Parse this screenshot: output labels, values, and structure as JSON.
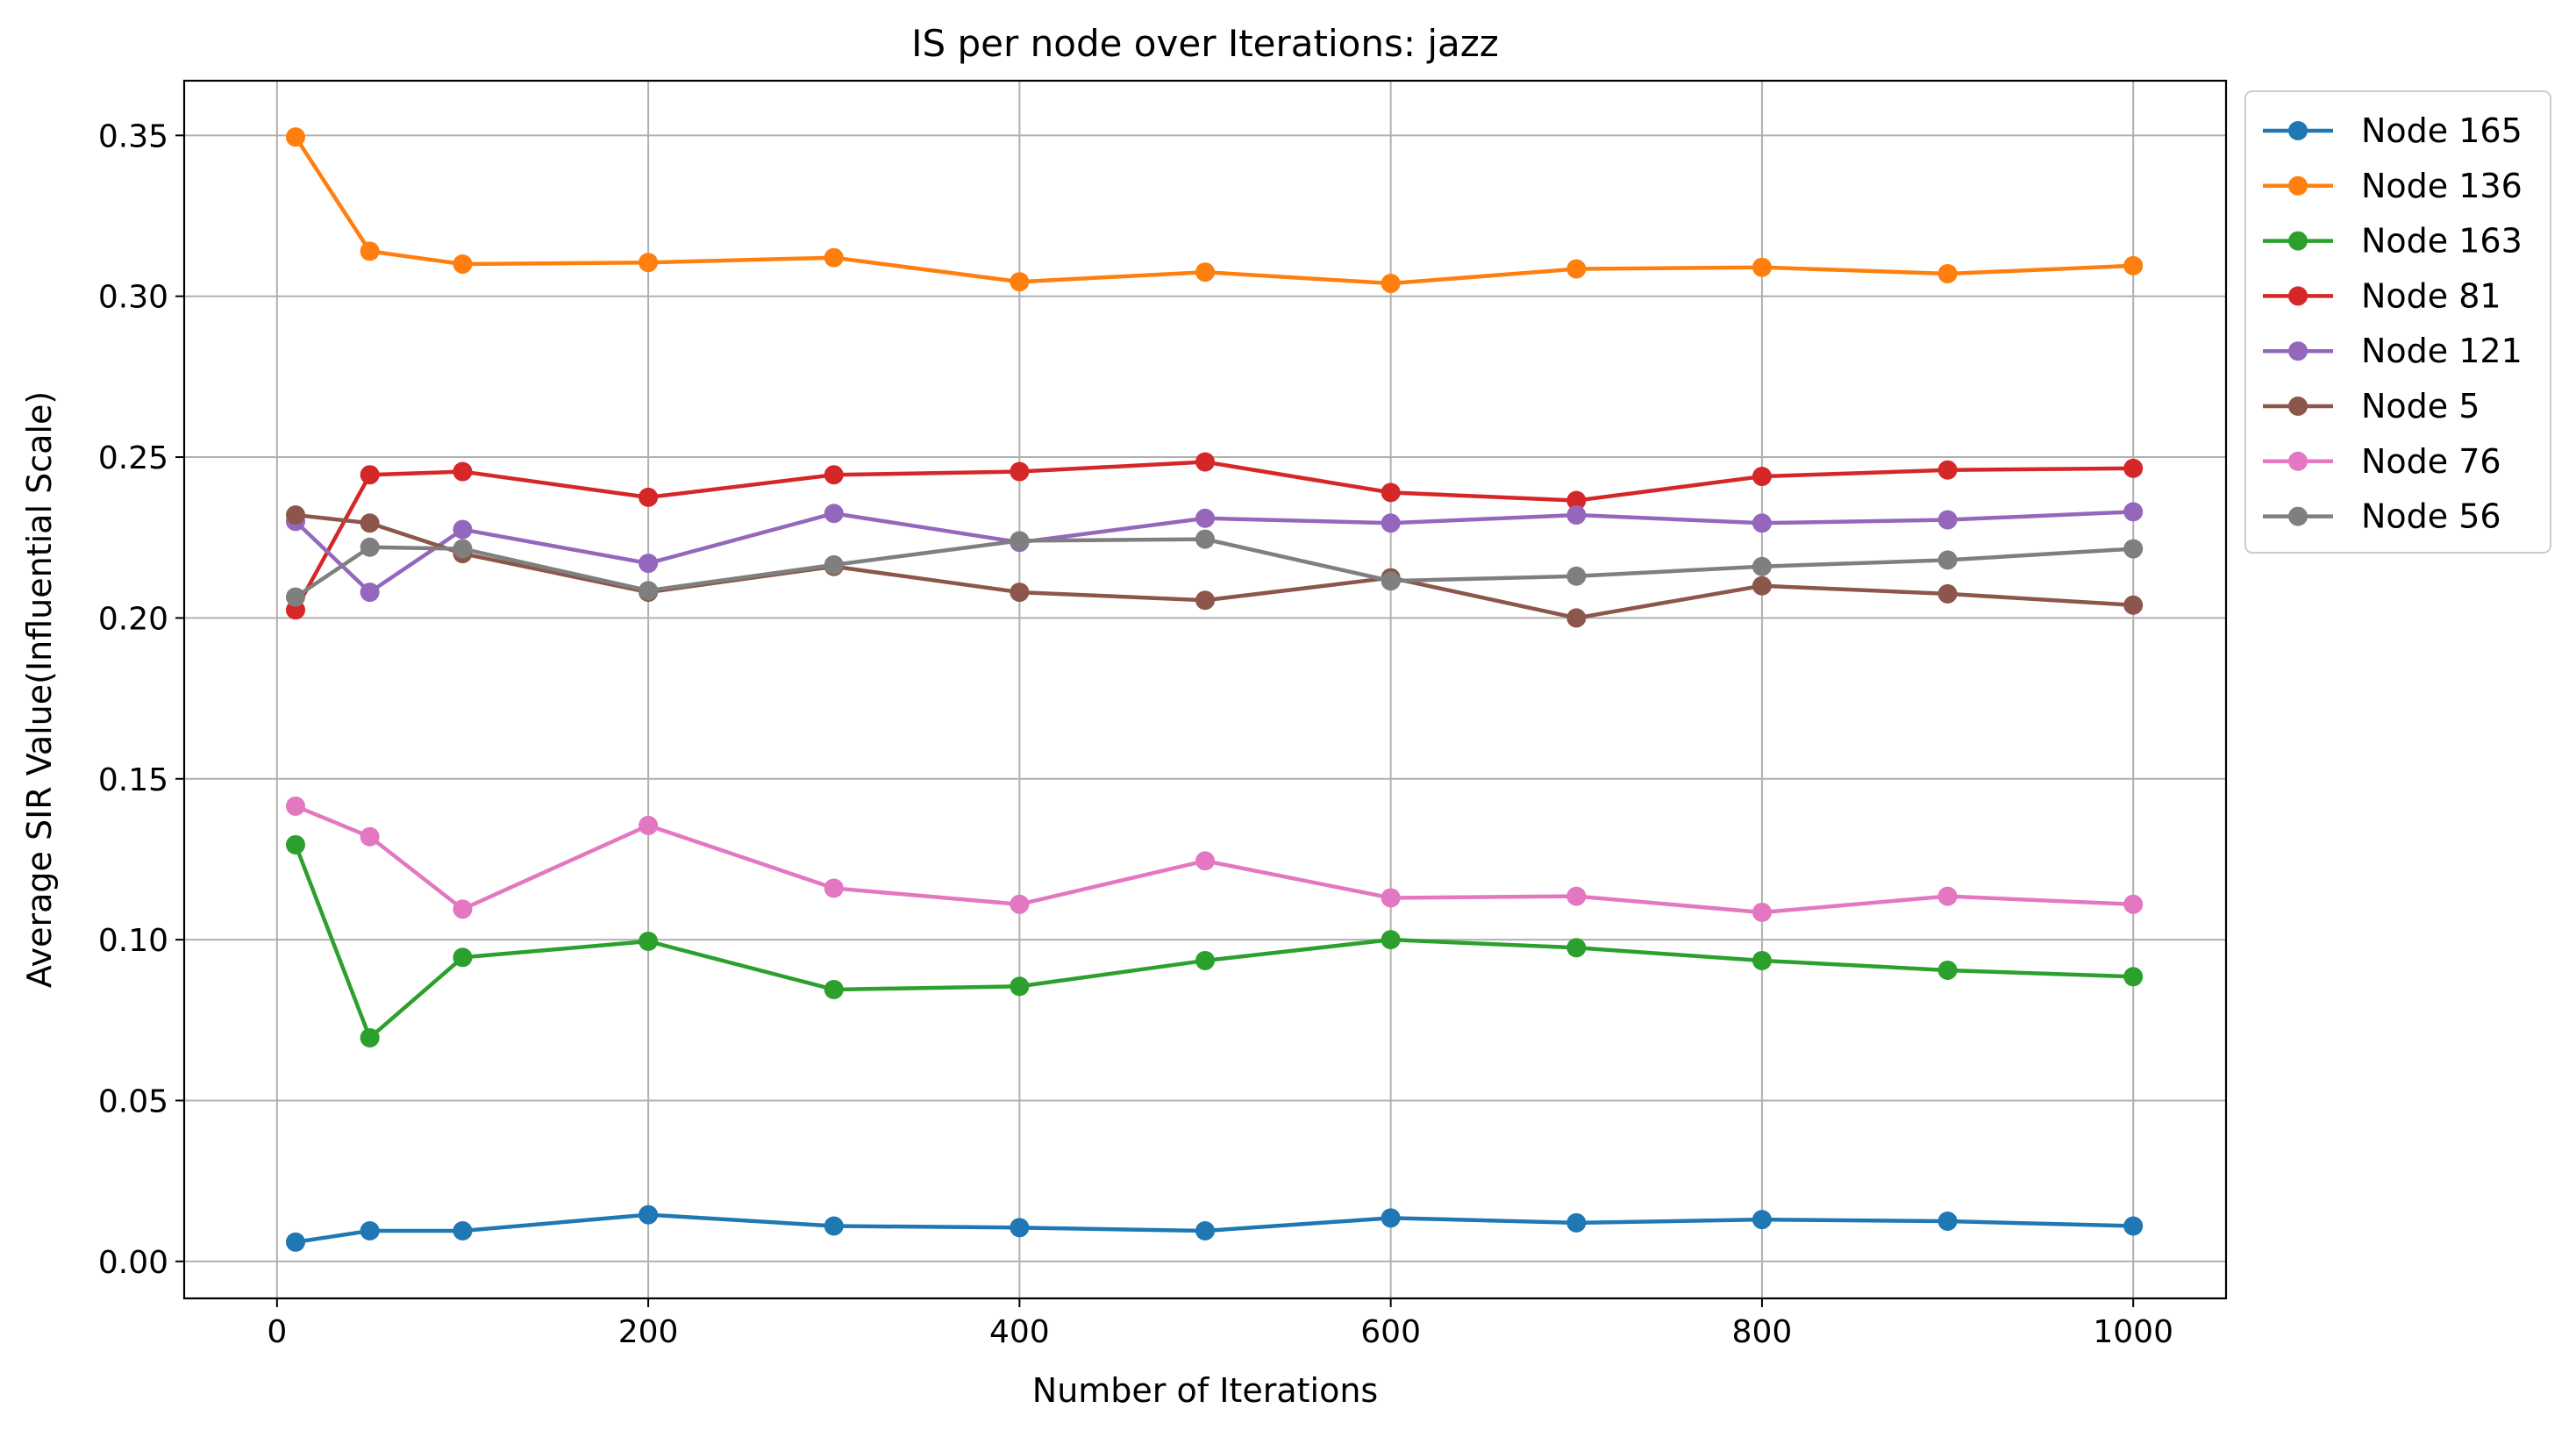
{
  "chart_data": {
    "type": "line",
    "title": "IS per node over Iterations: jazz",
    "xlabel": "Number of Iterations",
    "ylabel": "Average SIR Value(Influential Scale)",
    "xlim": [
      -50,
      1050
    ],
    "ylim": [
      -0.0115,
      0.367
    ],
    "xticks": [
      0,
      200,
      400,
      600,
      800,
      1000
    ],
    "xtick_labels": [
      "0",
      "200",
      "400",
      "600",
      "800",
      "1000"
    ],
    "yticks": [
      0.0,
      0.05,
      0.1,
      0.15,
      0.2,
      0.25,
      0.3,
      0.35
    ],
    "ytick_labels": [
      "0.00",
      "0.05",
      "0.10",
      "0.15",
      "0.20",
      "0.25",
      "0.30",
      "0.35"
    ],
    "grid": true,
    "legend_position": "outside-upper-right",
    "x": [
      10,
      50,
      100,
      200,
      300,
      400,
      500,
      600,
      700,
      800,
      900,
      1000
    ],
    "series": [
      {
        "name": "Node 165",
        "color": "#1f77b4",
        "marker": "circle",
        "values": [
          0.006,
          0.0095,
          0.0095,
          0.0145,
          0.011,
          0.0105,
          0.0095,
          0.0135,
          0.012,
          0.013,
          0.0125,
          0.011
        ]
      },
      {
        "name": "Node 136",
        "color": "#ff7f0e",
        "marker": "circle",
        "values": [
          0.3495,
          0.314,
          0.31,
          0.3105,
          0.312,
          0.3045,
          0.3075,
          0.304,
          0.3085,
          0.309,
          0.307,
          0.3095
        ]
      },
      {
        "name": "Node 163",
        "color": "#2ca02c",
        "marker": "circle",
        "values": [
          0.1295,
          0.0695,
          0.0945,
          0.0995,
          0.0845,
          0.0855,
          0.0935,
          0.1,
          0.0975,
          0.0935,
          0.0905,
          0.0885
        ]
      },
      {
        "name": "Node 81",
        "color": "#d62728",
        "marker": "circle",
        "values": [
          0.2025,
          0.2445,
          0.2455,
          0.2375,
          0.2445,
          0.2455,
          0.2485,
          0.239,
          0.2365,
          0.244,
          0.246,
          0.2465
        ]
      },
      {
        "name": "Node 121",
        "color": "#9467bd",
        "marker": "circle",
        "values": [
          0.23,
          0.208,
          0.2275,
          0.217,
          0.2325,
          0.2235,
          0.231,
          0.2295,
          0.232,
          0.2295,
          0.2305,
          0.233
        ]
      },
      {
        "name": "Node 5",
        "color": "#8c564b",
        "marker": "circle",
        "values": [
          0.232,
          0.2295,
          0.22,
          0.208,
          0.216,
          0.208,
          0.2055,
          0.2125,
          0.2,
          0.21,
          0.2075,
          0.204
        ]
      },
      {
        "name": "Node 76",
        "color": "#e377c2",
        "marker": "circle",
        "values": [
          0.1415,
          0.132,
          0.1095,
          0.1355,
          0.116,
          0.111,
          0.1245,
          0.113,
          0.1135,
          0.1085,
          0.1135,
          0.111
        ]
      },
      {
        "name": "Node 56",
        "color": "#7f7f7f",
        "marker": "circle",
        "values": [
          0.2065,
          0.222,
          0.2215,
          0.2085,
          0.2165,
          0.224,
          0.2245,
          0.2115,
          0.213,
          0.216,
          0.218,
          0.2215
        ]
      }
    ]
  }
}
